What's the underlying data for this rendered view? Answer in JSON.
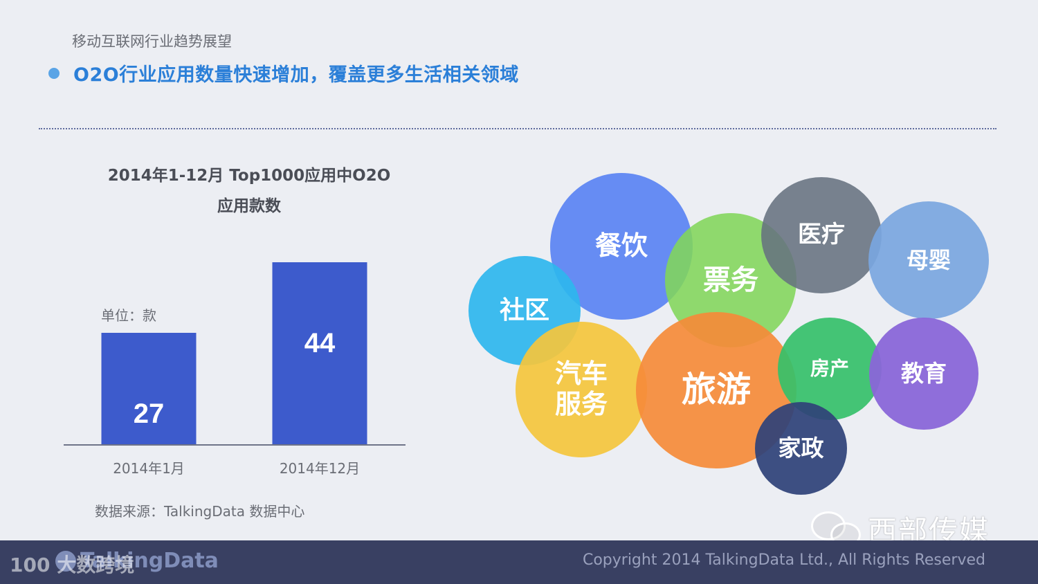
{
  "header": {
    "eyebrow": "移动互联网行业趋势展望",
    "headline": "O2O行业应用数量快速增加，覆盖更多生活相关领域"
  },
  "chart_data": [
    {
      "type": "bar",
      "title": "2014年1-12月 Top1000应用中O2O",
      "subtitle": "应用款数",
      "unit_label": "单位：款",
      "categories": [
        "2014年1月",
        "2014年12月"
      ],
      "values": [
        27,
        44
      ],
      "color": "#3d5bcc",
      "ylim": [
        0,
        50
      ],
      "grid": false
    },
    {
      "type": "bubble",
      "categories": [
        "餐饮",
        "社区",
        "票务",
        "医疗",
        "母婴",
        "汽车服务",
        "旅游",
        "房产",
        "教育",
        "家政"
      ],
      "colors": {
        "餐饮": "#5b84f2",
        "社区": "#2eb6ee",
        "票务": "#82d65a",
        "医疗": "#67727f",
        "母婴": "#7aa6e0",
        "汽车服务": "#f4c63d",
        "旅游": "#f58b3a",
        "房产": "#35c06a",
        "教育": "#8a66d8",
        "家政": "#2f4378"
      }
    }
  ],
  "bubbles": {
    "canyin": "餐饮",
    "shequ": "社区",
    "piaowu": "票务",
    "yiliao": "医疗",
    "muying": "母婴",
    "qiche_line1": "汽车",
    "qiche_line2": "服务",
    "lvyou": "旅游",
    "fangchan": "房产",
    "jiaoyu": "教育",
    "jiazheng": "家政"
  },
  "source": "数据来源：TalkingData 数据中心",
  "footer": {
    "logo": "TalkingData",
    "copyright": "Copyright 2014 TalkingData Ltd., All Rights Reserved",
    "watermark": "100 大数跨境",
    "wechat_name": "西部传媒"
  }
}
